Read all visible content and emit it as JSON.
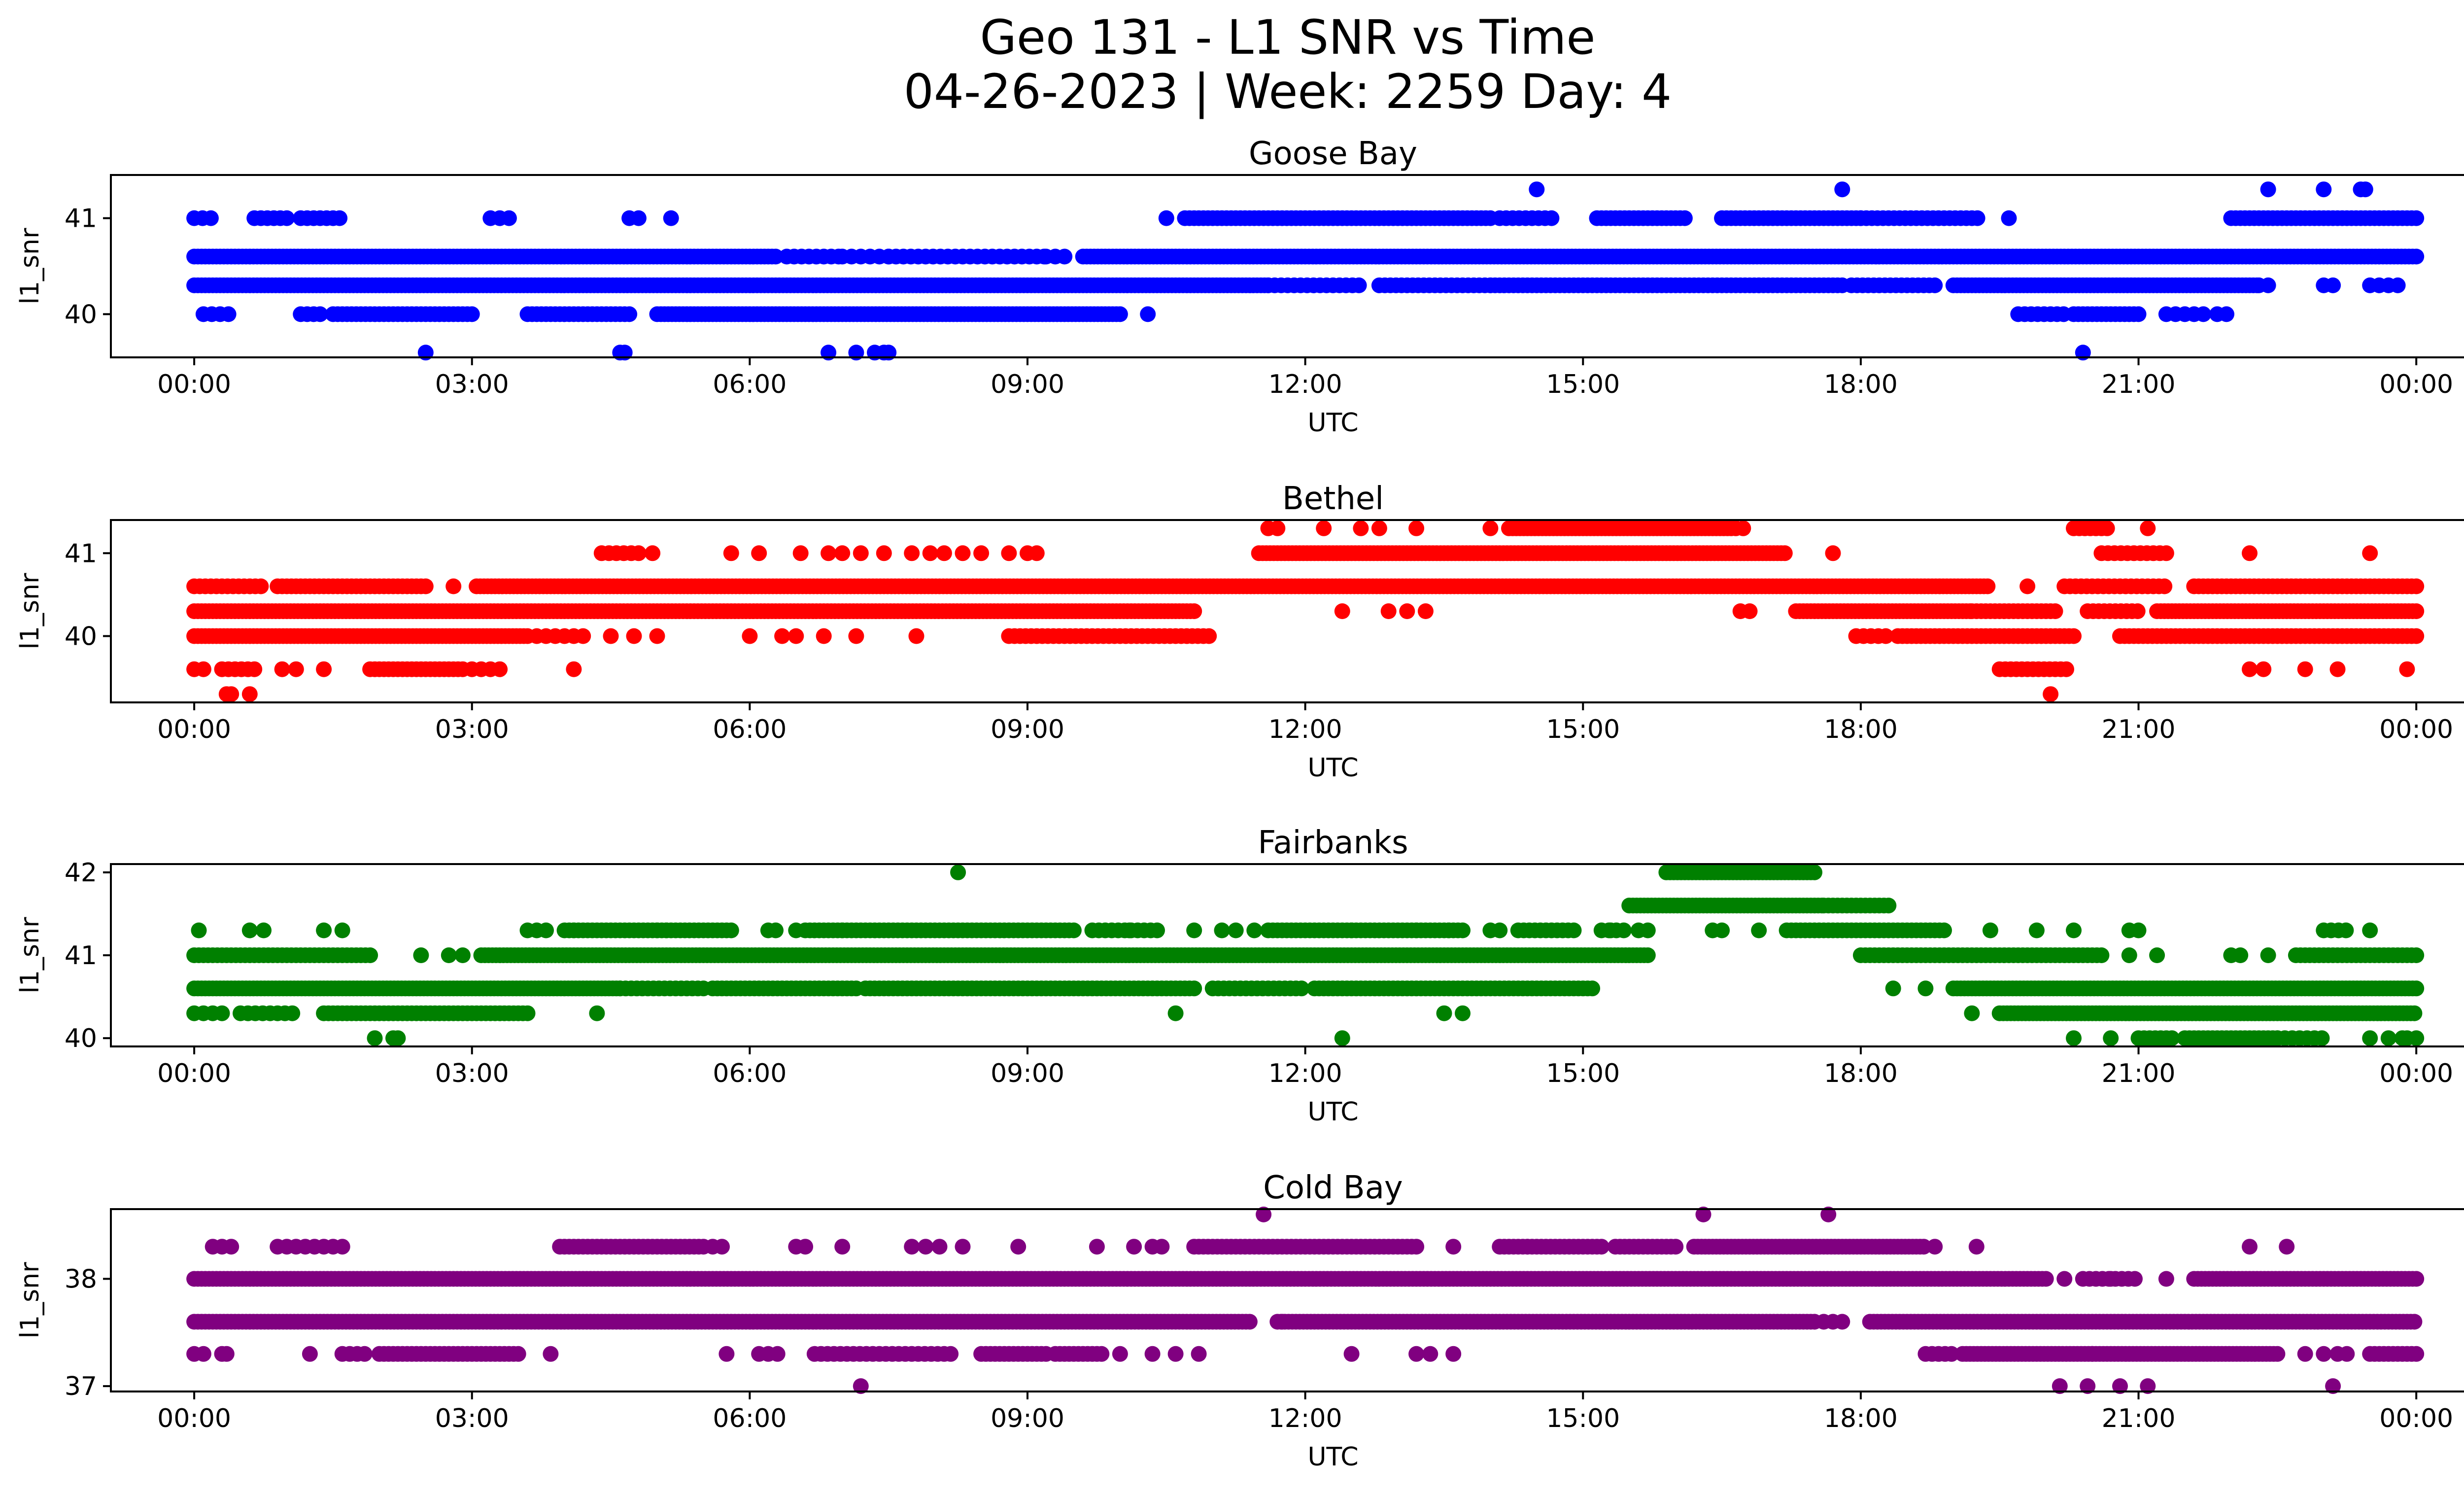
{
  "figure": {
    "title_line1": "Geo 131 - L1 SNR vs Time",
    "title_line2": "04-26-2023 | Week: 2259 Day: 4"
  },
  "chart_data": [
    {
      "type": "scatter",
      "title": "Goose Bay",
      "xlabel": "UTC",
      "ylabel": "l1_snr",
      "color": "#0000ff",
      "xlim": [
        -0.9,
        25.5
      ],
      "ylim": [
        39.55,
        41.45
      ],
      "xtick_hours": [
        0,
        3,
        6,
        9,
        12,
        15,
        18,
        21,
        24
      ],
      "xtick_labels": [
        "00:00",
        "03:00",
        "06:00",
        "09:00",
        "12:00",
        "15:00",
        "18:00",
        "21:00",
        "00:00"
      ],
      "yticks": [
        40,
        41
      ],
      "series": [
        {
          "y": 41.0,
          "segments": [
            [
              0.0,
              0.2,
              0.09
            ],
            [
              0.65,
              1.0,
              0.07
            ],
            [
              1.15,
              1.6,
              0.07
            ],
            [
              3.2,
              3.4,
              0.1
            ],
            [
              4.7,
              4.8,
              0.1
            ],
            [
              5.15,
              5.2,
              0.1
            ],
            [
              10.5,
              10.55,
              0.1
            ],
            [
              10.7,
              14.0,
              0.05
            ],
            [
              14.1,
              14.7,
              0.07
            ],
            [
              15.15,
              16.1,
              0.05
            ],
            [
              16.5,
              18.0,
              0.05
            ],
            [
              18.0,
              19.3,
              0.06
            ],
            [
              19.6,
              19.65,
              0.1
            ],
            [
              22.0,
              24.0,
              0.05
            ]
          ],
          "points": []
        },
        {
          "y": 40.6,
          "segments": [
            [
              0.0,
              6.3,
              0.04
            ],
            [
              6.4,
              7.0,
              0.08
            ],
            [
              7.0,
              7.5,
              0.1
            ],
            [
              7.5,
              9.2,
              0.08
            ],
            [
              9.2,
              9.45,
              0.1
            ],
            [
              9.6,
              24.0,
              0.04
            ]
          ],
          "points": []
        },
        {
          "y": 40.3,
          "segments": [
            [
              0.0,
              11.6,
              0.04
            ],
            [
              11.6,
              12.6,
              0.07
            ],
            [
              12.8,
              14.0,
              0.06
            ],
            [
              14.0,
              16.9,
              0.05
            ],
            [
              16.9,
              17.8,
              0.05
            ],
            [
              17.9,
              18.8,
              0.06
            ],
            [
              19.0,
              22.3,
              0.04
            ],
            [
              22.3,
              22.45,
              0.1
            ],
            [
              23.0,
              23.1,
              0.1
            ],
            [
              23.5,
              23.8,
              0.1
            ]
          ],
          "points": []
        },
        {
          "y": 40.0,
          "segments": [
            [
              0.1,
              0.4,
              0.09
            ],
            [
              1.15,
              1.4,
              0.07
            ],
            [
              1.5,
              3.0,
              0.05
            ],
            [
              3.6,
              4.7,
              0.05
            ],
            [
              5.0,
              10.0,
              0.04
            ],
            [
              10.3,
              10.35,
              0.1
            ],
            [
              19.7,
              20.25,
              0.07
            ],
            [
              20.3,
              21.0,
              0.05
            ],
            [
              21.3,
              21.7,
              0.1
            ],
            [
              21.85,
              22.0,
              0.1
            ]
          ],
          "points": []
        },
        {
          "y": 41.3,
          "segments": [],
          "points": [
            14.5,
            17.8,
            22.4,
            23.0,
            23.4,
            23.45
          ]
        },
        {
          "y": 39.6,
          "segments": [],
          "points": [
            2.5,
            4.6,
            4.65,
            6.85,
            7.15,
            7.35,
            7.45,
            7.5,
            20.4
          ]
        }
      ]
    },
    {
      "type": "scatter",
      "title": "Bethel",
      "xlabel": "UTC",
      "ylabel": "l1_snr",
      "color": "#ff0000",
      "xlim": [
        -0.9,
        25.5
      ],
      "ylim": [
        39.2,
        41.4
      ],
      "xtick_hours": [
        0,
        3,
        6,
        9,
        12,
        15,
        18,
        21,
        24
      ],
      "xtick_labels": [
        "00:00",
        "03:00",
        "06:00",
        "09:00",
        "12:00",
        "15:00",
        "18:00",
        "21:00",
        "00:00"
      ],
      "yticks": [
        40,
        41
      ],
      "series": [
        {
          "y": 41.3,
          "segments": [
            [
              11.6,
              11.7,
              0.1
            ],
            [
              14.2,
              16.6,
              0.04
            ],
            [
              16.65,
              16.8,
              0.08
            ],
            [
              20.3,
              20.7,
              0.06
            ],
            [
              21.1,
              21.15,
              0.1
            ]
          ],
          "points": [
            12.2,
            12.6,
            12.8,
            13.2,
            14.0
          ]
        },
        {
          "y": 41.0,
          "segments": [
            [
              4.4,
              4.8,
              0.08
            ],
            [
              11.5,
              17.2,
              0.04
            ],
            [
              17.7,
              17.75,
              0.1
            ],
            [
              20.6,
              21.3,
              0.07
            ]
          ],
          "points": [
            4.95,
            5.8,
            6.1,
            6.55,
            6.85,
            7.0,
            7.2,
            7.45,
            7.75,
            7.95,
            8.1,
            8.3,
            8.5,
            8.8,
            9.0,
            9.1,
            22.2,
            23.5
          ]
        },
        {
          "y": 40.6,
          "segments": [
            [
              0.0,
              0.75,
              0.06
            ],
            [
              0.9,
              2.5,
              0.05
            ],
            [
              3.05,
              19.4,
              0.04
            ],
            [
              20.2,
              21.3,
              0.06
            ],
            [
              21.6,
              24.0,
              0.05
            ]
          ],
          "points": [
            2.8,
            19.8
          ]
        },
        {
          "y": 40.3,
          "segments": [
            [
              0.0,
              10.8,
              0.04
            ],
            [
              16.7,
              16.85,
              0.1
            ],
            [
              17.3,
              19.2,
              0.04
            ],
            [
              19.2,
              20.1,
              0.05
            ],
            [
              20.45,
              21.0,
              0.06
            ],
            [
              21.2,
              24.0,
              0.04
            ]
          ],
          "points": [
            12.4,
            12.9,
            13.1,
            13.3
          ]
        },
        {
          "y": 40.0,
          "segments": [
            [
              0.0,
              3.6,
              0.04
            ],
            [
              3.7,
              4.2,
              0.1
            ],
            [
              8.8,
              11.0,
              0.06
            ],
            [
              17.95,
              18.3,
              0.08
            ],
            [
              18.4,
              20.3,
              0.05
            ],
            [
              20.8,
              24.0,
              0.05
            ]
          ],
          "points": [
            4.5,
            4.75,
            5.0,
            6.0,
            6.35,
            6.5,
            6.8,
            7.15,
            7.8
          ]
        },
        {
          "y": 39.6,
          "segments": [
            [
              0.0,
              0.1,
              0.1
            ],
            [
              0.3,
              0.7,
              0.07
            ],
            [
              1.9,
              2.9,
              0.05
            ],
            [
              3.0,
              3.3,
              0.1
            ],
            [
              19.5,
              20.25,
              0.06
            ]
          ],
          "points": [
            0.95,
            1.1,
            1.4,
            4.1,
            22.2,
            22.35,
            22.8,
            23.15,
            23.9
          ]
        },
        {
          "y": 39.3,
          "segments": [],
          "points": [
            0.35,
            0.4,
            0.6,
            20.05
          ]
        }
      ]
    },
    {
      "type": "scatter",
      "title": "Fairbanks",
      "xlabel": "UTC",
      "ylabel": "l1_snr",
      "color": "#008000",
      "xlim": [
        -0.9,
        25.5
      ],
      "ylim": [
        39.9,
        42.1
      ],
      "xtick_hours": [
        0,
        3,
        6,
        9,
        12,
        15,
        18,
        21,
        24
      ],
      "xtick_labels": [
        "00:00",
        "03:00",
        "06:00",
        "09:00",
        "12:00",
        "15:00",
        "18:00",
        "21:00",
        "00:00"
      ],
      "yticks": [
        40,
        41,
        42
      ],
      "series": [
        {
          "y": 42.0,
          "segments": [
            [
              15.9,
              17.5,
              0.04
            ]
          ],
          "points": [
            8.25
          ]
        },
        {
          "y": 41.6,
          "segments": [
            [
              15.5,
              17.6,
              0.04
            ],
            [
              17.6,
              18.3,
              0.05
            ]
          ],
          "points": []
        },
        {
          "y": 41.3,
          "segments": [
            [
              3.6,
              3.85,
              0.1
            ],
            [
              4.0,
              5.8,
              0.05
            ],
            [
              6.2,
              6.35,
              0.08
            ],
            [
              6.6,
              9.5,
              0.05
            ],
            [
              9.7,
              10.4,
              0.07
            ],
            [
              11.6,
              13.7,
              0.05
            ],
            [
              14.3,
              14.9,
              0.06
            ],
            [
              15.2,
              15.5,
              0.08
            ],
            [
              15.6,
              15.75,
              0.1
            ],
            [
              16.4,
              16.5,
              0.1
            ],
            [
              17.2,
              18.9,
              0.05
            ],
            [
              20.9,
              21.05,
              0.1
            ],
            [
              23.0,
              23.3,
              0.08
            ]
          ],
          "points": [
            0.05,
            0.6,
            0.75,
            1.4,
            1.6,
            4.1,
            5.0,
            5.1,
            6.5,
            7.0,
            10.1,
            10.8,
            11.1,
            11.25,
            11.45,
            12.5,
            13.2,
            13.55,
            14.0,
            14.1,
            15.3,
            16.9,
            19.4,
            19.9,
            20.3,
            23.5
          ]
        },
        {
          "y": 41.0,
          "segments": [
            [
              0.0,
              1.9,
              0.05
            ],
            [
              3.1,
              15.7,
              0.04
            ],
            [
              18.0,
              20.6,
              0.05
            ],
            [
              22.7,
              24.0,
              0.05
            ]
          ],
          "points": [
            2.45,
            2.75,
            2.9,
            20.9,
            21.2,
            22.0,
            22.1,
            22.4
          ]
        },
        {
          "y": 40.6,
          "segments": [
            [
              0.0,
              4.6,
              0.04
            ],
            [
              4.6,
              5.5,
              0.06
            ],
            [
              5.6,
              7.1,
              0.05
            ],
            [
              7.3,
              10.8,
              0.05
            ],
            [
              11.0,
              12.0,
              0.06
            ],
            [
              12.1,
              15.1,
              0.05
            ],
            [
              19.0,
              24.0,
              0.04
            ]
          ],
          "points": [
            7.15,
            7.25,
            18.35,
            18.7
          ]
        },
        {
          "y": 40.3,
          "segments": [
            [
              0.0,
              0.3,
              0.1
            ],
            [
              0.5,
              1.1,
              0.08
            ],
            [
              1.4,
              3.6,
              0.05
            ],
            [
              19.5,
              24.0,
              0.04
            ]
          ],
          "points": [
            4.35,
            10.6,
            13.5,
            13.7,
            19.2
          ]
        },
        {
          "y": 40.0,
          "segments": [
            [
              21.0,
              21.4,
              0.06
            ],
            [
              21.5,
              22.5,
              0.05
            ],
            [
              22.5,
              23.0,
              0.08
            ]
          ],
          "points": [
            1.95,
            2.15,
            2.2,
            12.4,
            20.3,
            20.7,
            23.5,
            23.7,
            23.85,
            23.9,
            24.0
          ]
        }
      ]
    },
    {
      "type": "scatter",
      "title": "Cold Bay",
      "xlabel": "UTC",
      "ylabel": "l1_snr",
      "color": "#800080",
      "xlim": [
        -0.9,
        25.5
      ],
      "ylim": [
        36.95,
        38.65
      ],
      "xtick_hours": [
        0,
        3,
        6,
        9,
        12,
        15,
        18,
        21,
        24
      ],
      "xtick_labels": [
        "00:00",
        "03:00",
        "06:00",
        "09:00",
        "12:00",
        "15:00",
        "18:00",
        "21:00",
        "00:00"
      ],
      "yticks": [
        37,
        38
      ],
      "series": [
        {
          "y": 38.6,
          "segments": [],
          "points": [
            11.55,
            16.3,
            17.65
          ]
        },
        {
          "y": 38.3,
          "segments": [
            [
              0.2,
              0.45,
              0.1
            ],
            [
              1.0,
              1.6,
              0.1
            ],
            [
              4.0,
              5.5,
              0.05
            ],
            [
              10.8,
              13.2,
              0.05
            ],
            [
              14.1,
              15.2,
              0.05
            ],
            [
              15.35,
              16.0,
              0.05
            ],
            [
              16.2,
              18.7,
              0.04
            ]
          ],
          "points": [
            0.9,
            3.95,
            5.6,
            5.7,
            6.5,
            6.6,
            7.0,
            7.75,
            7.9,
            8.05,
            8.3,
            8.9,
            9.75,
            10.15,
            10.35,
            10.45,
            13.6,
            14.4,
            18.8,
            19.25,
            22.2,
            22.6
          ]
        },
        {
          "y": 38.0,
          "segments": [
            [
              0.0,
              20.0,
              0.04
            ],
            [
              20.4,
              21.0,
              0.07
            ],
            [
              21.6,
              24.0,
              0.04
            ]
          ],
          "points": [
            20.2,
            20.7,
            21.3
          ]
        },
        {
          "y": 37.6,
          "segments": [
            [
              0.0,
              11.4,
              0.04
            ],
            [
              11.7,
              17.5,
              0.04
            ],
            [
              17.6,
              17.8,
              0.1
            ],
            [
              18.1,
              24.0,
              0.04
            ]
          ],
          "points": [
            11.75
          ]
        },
        {
          "y": 37.3,
          "segments": [
            [
              0.0,
              0.1,
              0.1
            ],
            [
              1.6,
              1.9,
              0.08
            ],
            [
              2.0,
              3.5,
              0.05
            ],
            [
              6.1,
              6.3,
              0.1
            ],
            [
              6.7,
              8.2,
              0.07
            ],
            [
              8.5,
              9.2,
              0.05
            ],
            [
              9.3,
              9.8,
              0.05
            ],
            [
              18.7,
              19.0,
              0.07
            ],
            [
              19.1,
              20.5,
              0.04
            ],
            [
              20.5,
              22.5,
              0.04
            ],
            [
              23.5,
              24.0,
              0.05
            ]
          ],
          "points": [
            0.3,
            0.35,
            1.25,
            3.85,
            5.75,
            10.0,
            10.35,
            10.6,
            10.85,
            12.5,
            13.2,
            13.35,
            13.6,
            22.8,
            23.0,
            23.15,
            23.25
          ]
        },
        {
          "y": 37.0,
          "segments": [],
          "points": [
            7.2,
            20.15,
            20.45,
            20.8,
            21.1,
            23.1
          ]
        }
      ]
    }
  ]
}
